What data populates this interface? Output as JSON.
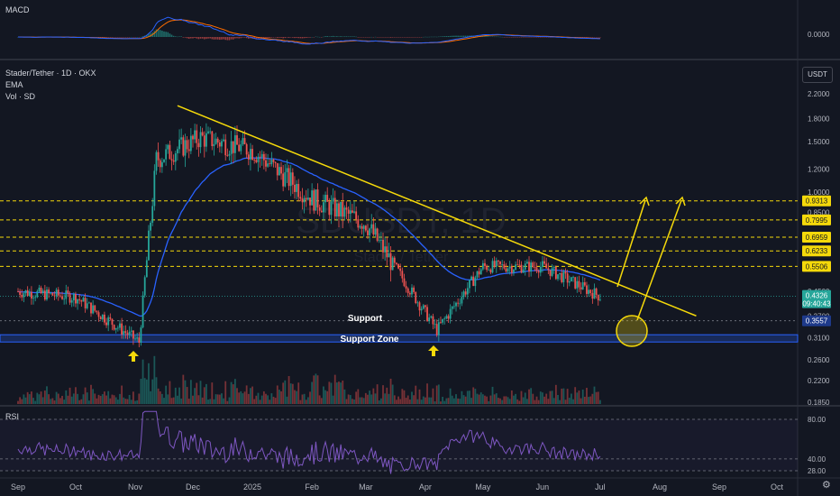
{
  "header": {
    "title": "Stader/Tether · 1D · OKX",
    "indicator_ema": "EMA",
    "indicator_vol": "Vol · SD",
    "macd_label": "MACD",
    "rsi_label": "RSI",
    "currency_button": "USDT",
    "watermark": "SDUSDT, 1D",
    "watermark_sub": "Stader / Tether"
  },
  "axes": {
    "macd_value": "0.0000",
    "price_ticks": [
      "2.2000",
      "1.8000",
      "1.5000",
      "1.2000",
      "1.0000",
      "0.8500",
      "0.5500",
      "0.4500",
      "0.3700",
      "0.3100",
      "0.2600",
      "0.2200",
      "0.1850"
    ],
    "rsi_ticks": [
      "80.00",
      "40.00",
      "28.00"
    ],
    "x_labels": [
      "Sep",
      "Oct",
      "Nov",
      "Dec",
      "2025",
      "Feb",
      "Mar",
      "Apr",
      "May",
      "Jun",
      "Jul",
      "Aug",
      "Sep",
      "Oct"
    ]
  },
  "price_tags": {
    "levels": [
      {
        "label": "0.9313",
        "color": "#f5d90a"
      },
      {
        "label": "0.7995",
        "color": "#f5d90a"
      },
      {
        "label": "0.6959",
        "color": "#f5d90a"
      },
      {
        "label": "0.6233",
        "color": "#f5d90a"
      },
      {
        "label": "0.5506",
        "color": "#f5d90a"
      }
    ],
    "last_price": "0.4326",
    "countdown": "09:40:43",
    "support_price": "0.3557"
  },
  "annotations": {
    "support": "Support",
    "support_zone": "Support Zone"
  },
  "colors": {
    "background": "#131722",
    "up": "#26a69a",
    "down": "#ef5350",
    "ema": "#2962ff",
    "trendline": "#f5d90a",
    "support_zone": "#2962ff",
    "rsi": "#7e57c2",
    "macd": "#2962ff",
    "signal": "#ff6d00"
  },
  "chart_data": {
    "type": "candlestick",
    "timeframe": "1D",
    "price_scale": "log",
    "ylim": [
      0.185,
      2.2
    ],
    "x_range": [
      "2024-09",
      "2025-10"
    ],
    "series_summary": [
      {
        "date": "2024-09",
        "price": 0.45
      },
      {
        "date": "2024-10",
        "price": 0.43
      },
      {
        "date": "2024-11-03",
        "price": 0.3
      },
      {
        "date": "2024-11-12",
        "price": 1.3
      },
      {
        "date": "2024-12-05",
        "price": 1.55
      },
      {
        "date": "2025-01-01",
        "price": 1.4
      },
      {
        "date": "2025-02-01",
        "price": 0.95
      },
      {
        "date": "2025-03-01",
        "price": 0.78
      },
      {
        "date": "2025-04-07",
        "price": 0.33
      },
      {
        "date": "2025-05-01",
        "price": 0.55
      },
      {
        "date": "2025-06-01",
        "price": 0.55
      },
      {
        "date": "2025-07-01",
        "price": 0.4326
      }
    ],
    "last_price": 0.4326,
    "horizontal_levels": [
      0.9313,
      0.7995,
      0.6959,
      0.6233,
      0.5506
    ],
    "support": 0.3557,
    "support_zone": [
      0.3,
      0.318
    ],
    "rsi_levels": [
      80,
      40,
      28
    ]
  }
}
